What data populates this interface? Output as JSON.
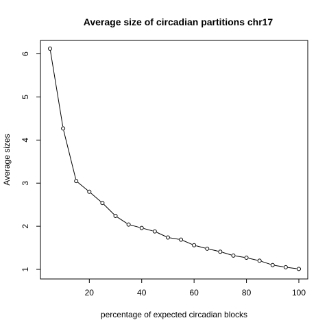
{
  "chart_data": {
    "type": "line",
    "title": "Average size of circadian partitions chr17",
    "xlabel": "percentage of expected circadian blocks",
    "ylabel": "Average sizes",
    "xlim": [
      5,
      100
    ],
    "ylim": [
      1,
      6.12
    ],
    "xticks": [
      20,
      40,
      60,
      80,
      100
    ],
    "yticks": [
      1,
      2,
      3,
      4,
      5,
      6
    ],
    "grid": false,
    "markers": "open-circle",
    "series": [
      {
        "x": [
          5,
          10,
          15,
          20,
          25,
          30,
          35,
          40,
          45,
          50,
          55,
          60,
          65,
          70,
          75,
          80,
          85,
          90,
          95,
          100
        ],
        "y": [
          6.12,
          4.27,
          3.05,
          2.8,
          2.54,
          2.24,
          2.04,
          1.96,
          1.88,
          1.74,
          1.69,
          1.56,
          1.48,
          1.41,
          1.32,
          1.27,
          1.2,
          1.1,
          1.05,
          1.01
        ]
      }
    ]
  }
}
